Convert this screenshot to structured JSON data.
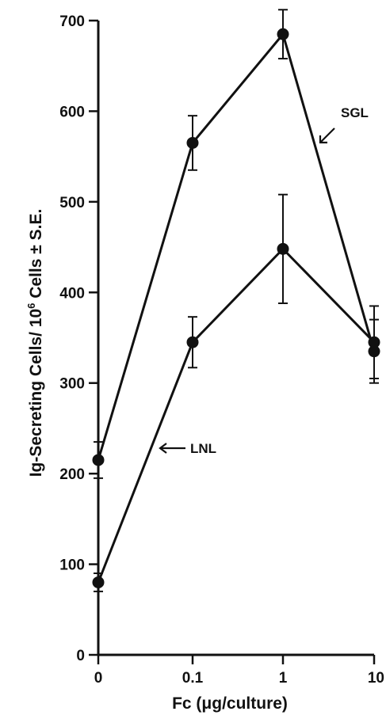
{
  "chart_data": {
    "type": "line",
    "x_axis": {
      "scale": "log-like categorical",
      "tick_labels": [
        "0",
        "0.1",
        "1",
        "10"
      ],
      "label": "Fc (μg/culture)"
    },
    "y_axis": {
      "range": [
        0,
        700
      ],
      "ticks": [
        0,
        100,
        200,
        300,
        400,
        500,
        600,
        700
      ],
      "tick_labels": [
        "0",
        "100",
        "200",
        "300",
        "400",
        "500",
        "600",
        "700"
      ],
      "label_prefix": "Ig-Secreting Cells/ 10",
      "label_superscript": "6",
      "label_suffix": " Cells ± S.E."
    },
    "x": [
      "0",
      "0.1",
      "1",
      "10"
    ],
    "series": [
      {
        "name": "SGL",
        "values": [
          215,
          565,
          685,
          335
        ],
        "error": [
          20,
          30,
          27,
          35
        ]
      },
      {
        "name": "LNL",
        "values": [
          80,
          345,
          448,
          345
        ],
        "error": [
          10,
          28,
          60,
          40
        ]
      }
    ],
    "grid": false,
    "legend": "direct labels with arrows"
  }
}
